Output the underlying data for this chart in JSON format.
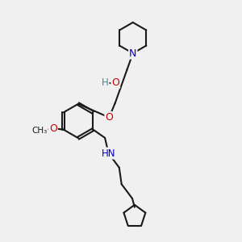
{
  "bg_color": "#f0f0f0",
  "bond_color": "#1a1a1a",
  "N_color": "#0000cd",
  "O_color": "#cc0000",
  "H_color": "#4a8888",
  "line_width": 1.5,
  "fig_size": [
    3.0,
    3.0
  ],
  "dpi": 100,
  "xlim": [
    0,
    10
  ],
  "ylim": [
    0,
    10
  ]
}
